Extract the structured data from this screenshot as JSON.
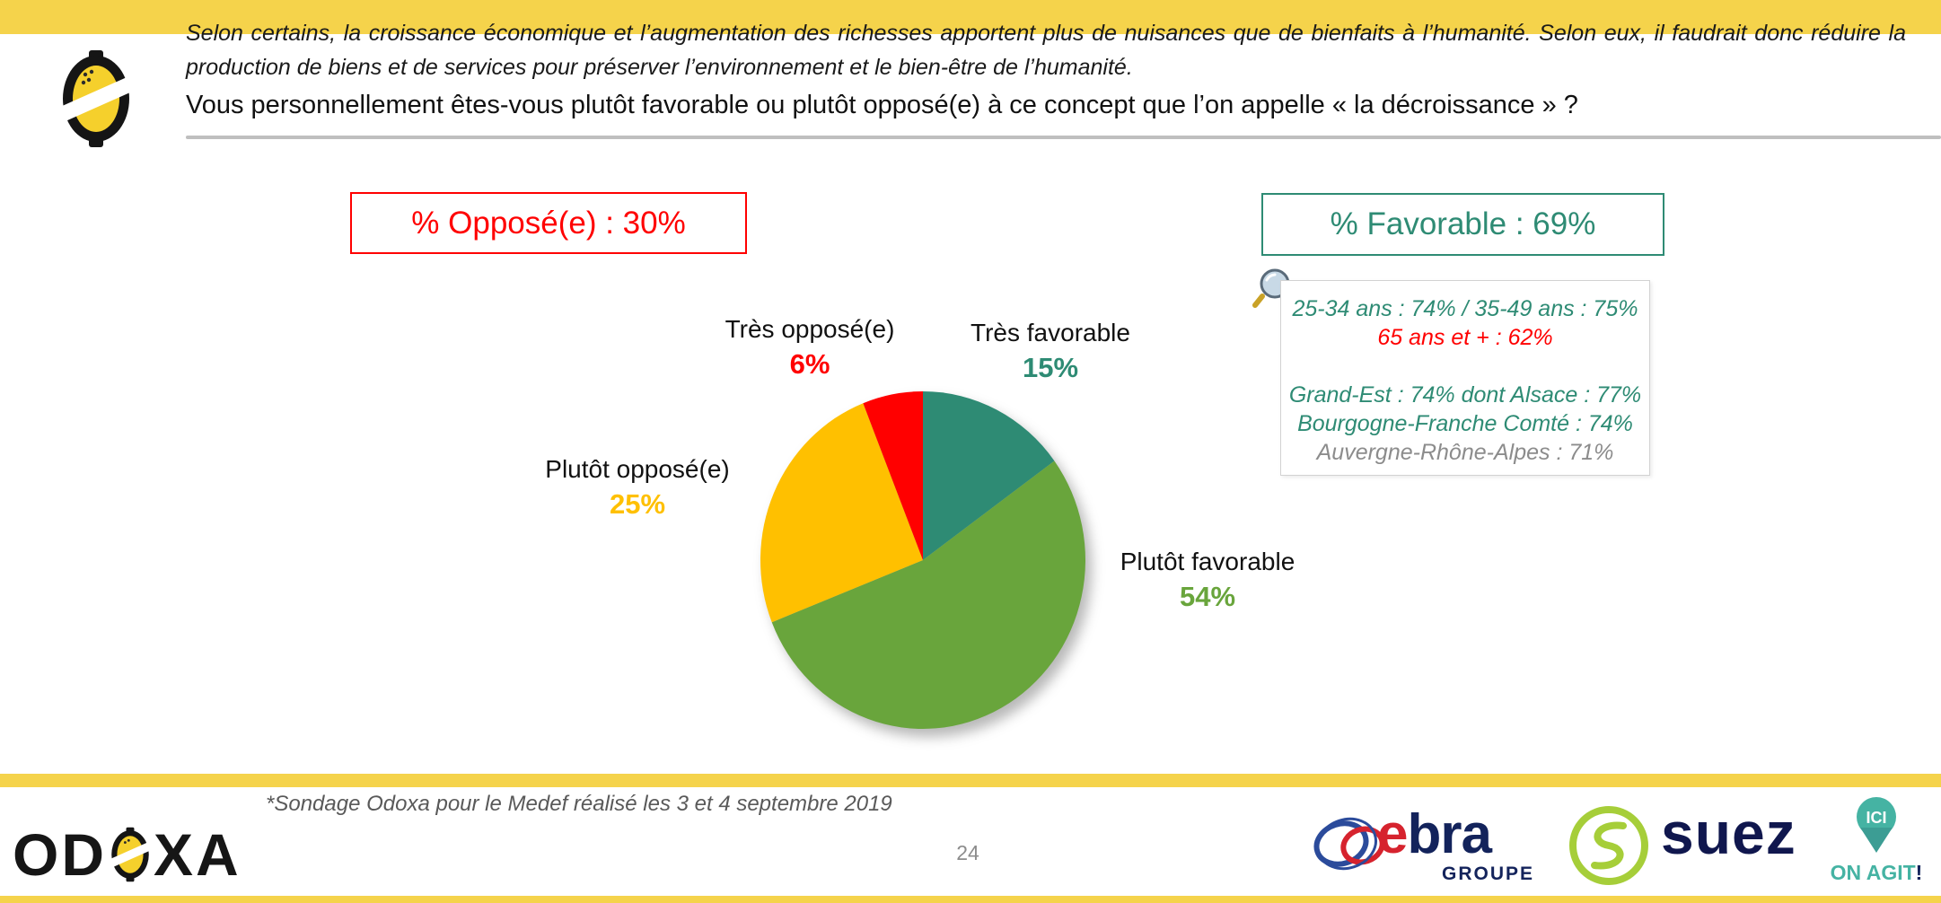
{
  "colors": {
    "brand_yellow": "#F5D34B",
    "teal": "#2E8B74",
    "green": "#69A53C",
    "gold": "#FFC000",
    "red": "#FF0000",
    "navy": "#13235B",
    "suez_navy": "#10174E",
    "ebra_red": "#D6232E",
    "lime": "#A6CE39",
    "pin_teal": "#45B3A3",
    "gray_text": "#8C8C8C"
  },
  "header": {
    "intro_line1": "Selon certains, la croissance économique et l’augmentation des richesses apportent plus de nuisances que de bienfaits à l’humanité. Selon eux, il faudrait donc réduire la",
    "intro_line2": "production de biens et de services pour préserver l’environnement et le bien-être de l’humanité.",
    "question": "Vous personnellement êtes-vous plutôt favorable ou plutôt opposé(e) à ce concept que l’on appelle « la décroissance » ?"
  },
  "summary": {
    "opposed_label": "% Opposé(e) : 30%",
    "opposed_color": "#FF0000",
    "favorable_label": "% Favorable : 69%",
    "favorable_color": "#2E8B74"
  },
  "detail_box": {
    "lines": [
      {
        "text": "25-34 ans : 74% / 35-49 ans : 75%",
        "color": "#2E8B74"
      },
      {
        "text": "65 ans et + : 62%",
        "color": "#FF0000"
      },
      {
        "text": "",
        "color": "#000000"
      },
      {
        "text": "Grand-Est : 74% dont Alsace : 77%",
        "color": "#2E8B74"
      },
      {
        "text": "Bourgogne-Franche Comté : 74%",
        "color": "#2E8B74"
      },
      {
        "text": "Auvergne-Rhône-Alpes : 71%",
        "color": "#8C8C8C"
      }
    ]
  },
  "chart_data": {
    "type": "pie",
    "title": "",
    "categories": [
      "Très favorable",
      "Plutôt favorable",
      "Plutôt opposé(e)",
      "Très opposé(e)"
    ],
    "values": [
      15,
      54,
      25,
      6
    ],
    "colors": [
      "#2E8B74",
      "#69A53C",
      "#FFC000",
      "#FF0000"
    ],
    "start_angle": "12 o'clock",
    "direction": "clockwise",
    "legend_position": "none",
    "labels": [
      {
        "name": "Très favorable",
        "value": "15%"
      },
      {
        "name": "Plutôt favorable",
        "value": "54%"
      },
      {
        "name": "Plutôt opposé(e)",
        "value": "25%"
      },
      {
        "name": "Très opposé(e)",
        "value": "6%"
      }
    ],
    "totals": {
      "opposed": "30%",
      "favorable": "69%"
    }
  },
  "footer": {
    "note": "*Sondage Odoxa pour le Medef réalisé les 3 et 4 septembre 2019",
    "page_number": "24",
    "odoxa_left": "OD",
    "odoxa_right": "XA",
    "ebra_e": "e",
    "ebra_rest": "bra",
    "ebra_sub": "GROUPE",
    "suez": "suez",
    "ici_pin": "ICI",
    "ici_on_agit": "ON AGIT",
    "ici_bang": "!"
  }
}
